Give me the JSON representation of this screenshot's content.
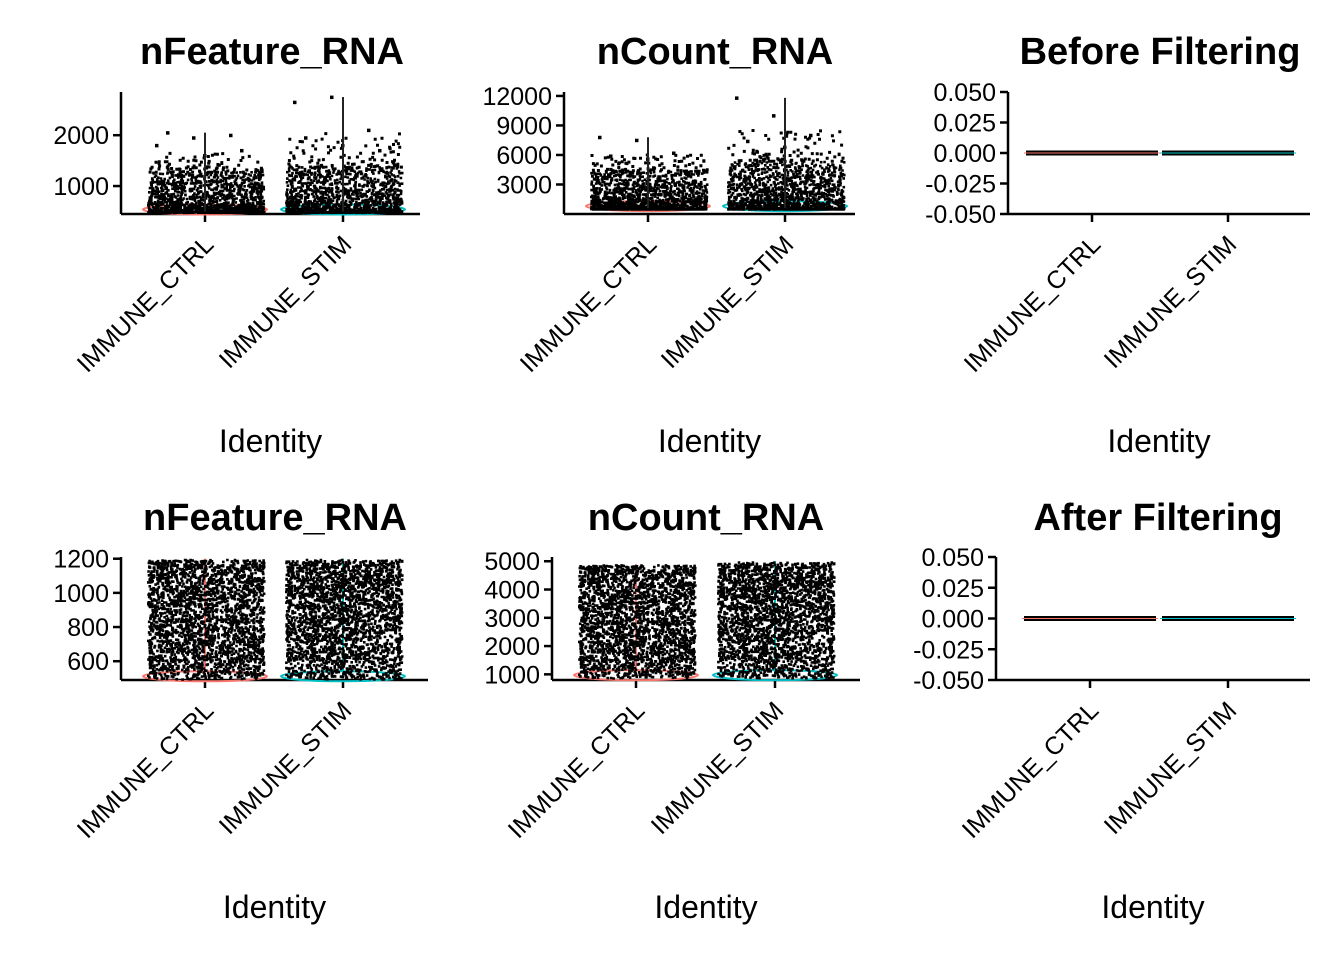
{
  "colors": {
    "ctrl": "#F8766D",
    "stim": "#00BFC4",
    "points": "#000000",
    "axis": "#000000"
  },
  "chart_data": [
    {
      "type": "violin",
      "title": "nFeature_RNA",
      "xlabel": "Identity",
      "ylabel": "",
      "categories": [
        "IMMUNE_CTRL",
        "IMMUNE_STIM"
      ],
      "ylim": [
        450,
        2850
      ],
      "yticks": [
        1000,
        2000
      ],
      "series": [
        {
          "values": {
            "min": 500,
            "q90": 1300,
            "max": 2050,
            "outliers": [
              1800,
              1950,
              2000,
              2050,
              1600,
              1700
            ]
          }
        },
        {
          "values": {
            "min": 500,
            "q90": 1400,
            "max": 2750,
            "outliers": [
              2650,
              2750,
              2100,
              1950,
              1800,
              1700
            ]
          }
        }
      ]
    },
    {
      "type": "violin",
      "title": "nCount_RNA",
      "xlabel": "Identity",
      "ylabel": "",
      "categories": [
        "IMMUNE_CTRL",
        "IMMUNE_STIM"
      ],
      "ylim": [
        0,
        12400
      ],
      "yticks": [
        3000,
        6000,
        9000,
        12000
      ],
      "series": [
        {
          "values": {
            "min": 600,
            "q90": 4500,
            "max": 7800,
            "outliers": [
              7800,
              7500,
              6200,
              5900,
              5600
            ]
          }
        },
        {
          "values": {
            "min": 600,
            "q90": 5500,
            "max": 11800,
            "outliers": [
              11800,
              10000,
              8000,
              7400,
              6800
            ]
          }
        }
      ]
    },
    {
      "type": "violin",
      "title": "Before Filtering",
      "xlabel": "Identity",
      "ylabel": "",
      "categories": [
        "IMMUNE_CTRL",
        "IMMUNE_STIM"
      ],
      "ylim": [
        -0.05,
        0.05
      ],
      "yticks": [
        "0.050",
        "0.025",
        "0.000",
        "-0.025",
        "-0.050"
      ],
      "ytick_values": [
        0.05,
        0.025,
        0,
        -0.025,
        -0.05
      ],
      "series": [
        {
          "values": {
            "constant": 0
          }
        },
        {
          "values": {
            "constant": 0
          }
        }
      ]
    },
    {
      "type": "violin",
      "title": "nFeature_RNA",
      "xlabel": "Identity",
      "ylabel": "",
      "categories": [
        "IMMUNE_CTRL",
        "IMMUNE_STIM"
      ],
      "ylim": [
        490,
        1210
      ],
      "yticks": [
        600,
        800,
        1000,
        1200
      ],
      "series": [
        {
          "values": {
            "min": 500,
            "max": 1200
          }
        },
        {
          "values": {
            "min": 500,
            "max": 1200
          }
        }
      ]
    },
    {
      "type": "violin",
      "title": "nCount_RNA",
      "xlabel": "Identity",
      "ylabel": "",
      "categories": [
        "IMMUNE_CTRL",
        "IMMUNE_STIM"
      ],
      "ylim": [
        800,
        5150
      ],
      "yticks": [
        1000,
        2000,
        3000,
        4000,
        5000
      ],
      "series": [
        {
          "values": {
            "min": 900,
            "max": 4900
          }
        },
        {
          "values": {
            "min": 900,
            "max": 5000
          }
        }
      ]
    },
    {
      "type": "violin",
      "title": "After Filtering",
      "xlabel": "Identity",
      "ylabel": "",
      "categories": [
        "IMMUNE_CTRL",
        "IMMUNE_STIM"
      ],
      "ylim": [
        -0.05,
        0.05
      ],
      "yticks": [
        "0.050",
        "0.025",
        "0.000",
        "-0.025",
        "-0.050"
      ],
      "ytick_values": [
        0.05,
        0.025,
        0,
        -0.025,
        -0.05
      ],
      "series": [
        {
          "values": {
            "constant": 0
          }
        },
        {
          "values": {
            "constant": 0
          }
        }
      ]
    }
  ]
}
